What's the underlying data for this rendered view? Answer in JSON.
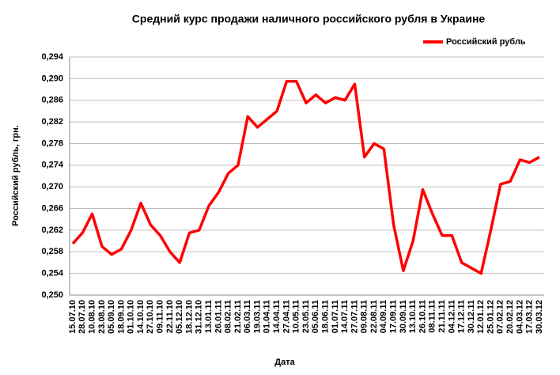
{
  "chart_data": {
    "type": "line",
    "title": "Средний курс продажи наличного российского рубля в Украине",
    "xlabel": "Дата",
    "ylabel": "Российский рубль, грн.",
    "categories": [
      "15.07.10",
      "28.07.10",
      "10.08.10",
      "23.08.10",
      "05.09.10",
      "18.09.10",
      "01.10.10",
      "14.10.10",
      "27.10.10",
      "09.11.10",
      "22.11.10",
      "05.12.10",
      "18.12.10",
      "31.12.10",
      "13.01.11",
      "26.01.11",
      "08.02.11",
      "21.02.11",
      "06.03.11",
      "19.03.11",
      "01.04.11",
      "14.04.11",
      "27.04.11",
      "10.05.11",
      "23.05.11",
      "05.06.11",
      "18.06.11",
      "01.07.11",
      "14.07.11",
      "27.07.11",
      "09.08.11",
      "22.08.11",
      "04.09.11",
      "17.09.11",
      "30.09.11",
      "13.10.11",
      "26.10.11",
      "08.11.11",
      "21.11.11",
      "04.12.11",
      "17.12.11",
      "30.12.11",
      "12.01.12",
      "25.01.12",
      "07.02.12",
      "20.02.12",
      "04.03.12",
      "17.03.12",
      "30.03.12"
    ],
    "series": [
      {
        "name": "Российский рубль",
        "color": "#ff0000",
        "values": [
          0.2595,
          0.2615,
          0.265,
          0.259,
          0.2575,
          0.2585,
          0.262,
          0.267,
          0.263,
          0.261,
          0.258,
          0.256,
          0.2615,
          0.262,
          0.2665,
          0.269,
          0.2725,
          0.274,
          0.283,
          0.281,
          0.2825,
          0.284,
          0.2895,
          0.2895,
          0.2855,
          0.287,
          0.2855,
          0.2865,
          0.286,
          0.289,
          0.2755,
          0.278,
          0.277,
          0.263,
          0.2545,
          0.26,
          0.2695,
          0.265,
          0.261,
          0.261,
          0.256,
          0.255,
          0.254,
          0.262,
          0.2705,
          0.271,
          0.275,
          0.2745,
          0.2755
        ]
      }
    ],
    "ylim": [
      0.25,
      0.294
    ],
    "yticks": [
      {
        "value": 0.25,
        "label": "0,250"
      },
      {
        "value": 0.254,
        "label": "0,254"
      },
      {
        "value": 0.258,
        "label": "0,258"
      },
      {
        "value": 0.262,
        "label": "0,262"
      },
      {
        "value": 0.266,
        "label": "0,266"
      },
      {
        "value": 0.27,
        "label": "0,270"
      },
      {
        "value": 0.274,
        "label": "0,274"
      },
      {
        "value": 0.278,
        "label": "0,278"
      },
      {
        "value": 0.282,
        "label": "0,282"
      },
      {
        "value": 0.286,
        "label": "0,286"
      },
      {
        "value": 0.29,
        "label": "0,290"
      },
      {
        "value": 0.294,
        "label": "0,294"
      }
    ],
    "grid": true,
    "legend": "top-right"
  }
}
